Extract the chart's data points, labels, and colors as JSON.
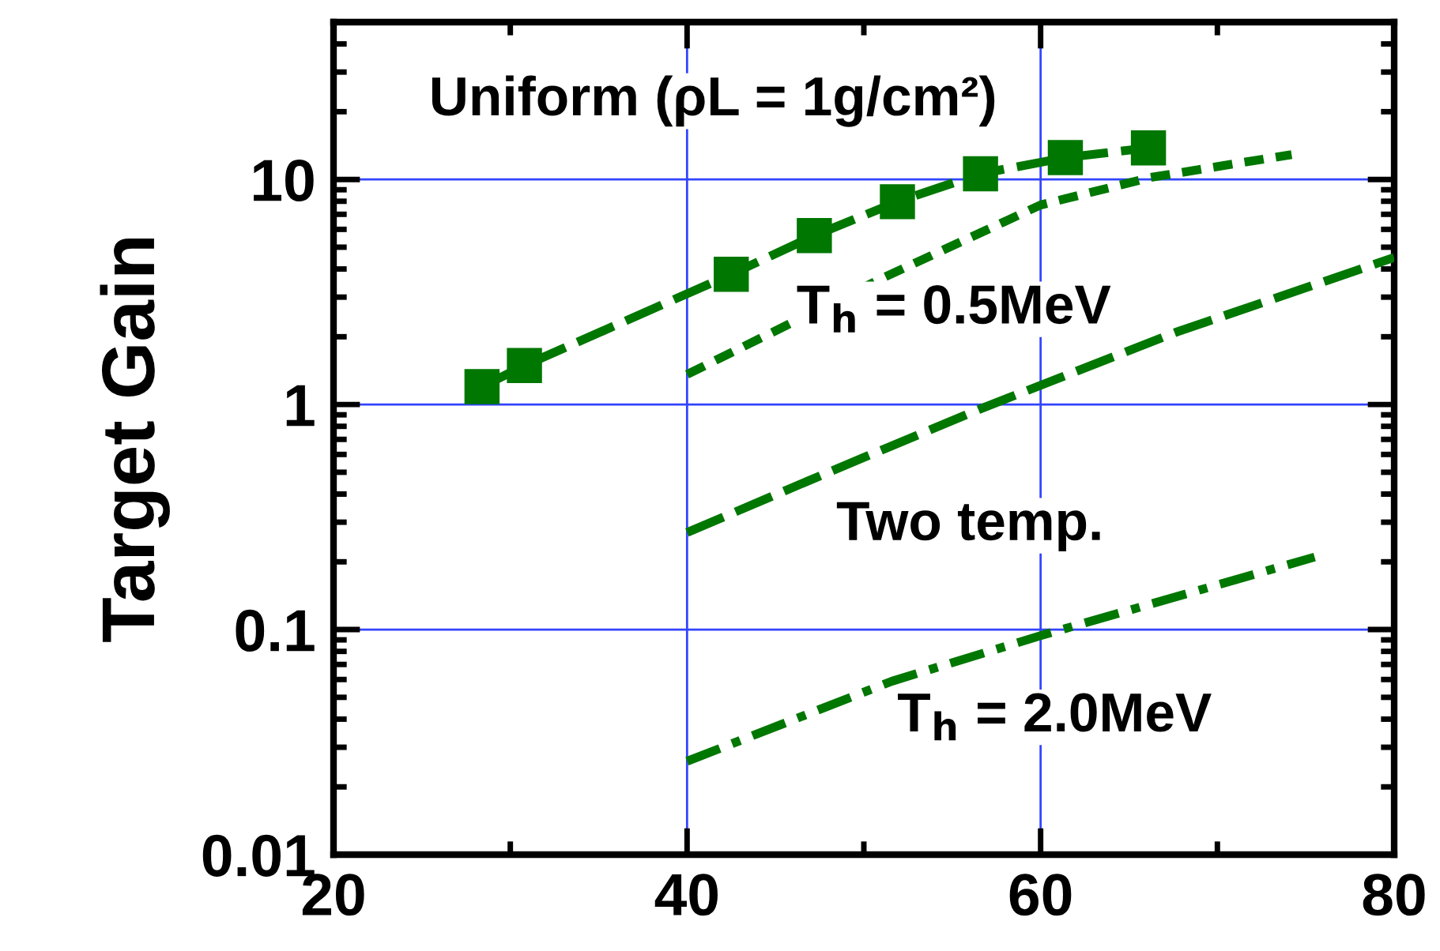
{
  "chart_data": {
    "type": "line",
    "title": "Uniform (ρL = 1g/cm²)",
    "ylabel": "Target Gain",
    "xlim": [
      20,
      80
    ],
    "xticks": [
      20,
      40,
      60,
      80
    ],
    "ylim": [
      0.01,
      50
    ],
    "yticks": [
      0.01,
      0.1,
      1,
      10
    ],
    "log": "y",
    "grid": true,
    "series": [
      {
        "color": "#007700",
        "marker": "square",
        "line_style": "dashed",
        "x": [
          28.4,
          30.8,
          42.5,
          47.2,
          51.9,
          56.6,
          61.4,
          66.1
        ],
        "values": [
          1.2,
          1.49,
          3.79,
          5.63,
          7.96,
          10.6,
          12.5,
          13.8
        ]
      },
      {
        "color": "#007700",
        "marker": "none",
        "line_style": "dotted",
        "x": [
          40,
          51,
          60,
          66.2,
          74.2
        ],
        "values": [
          1.36,
          3.63,
          7.7,
          10.2,
          12.9
        ]
      },
      {
        "color": "#007700",
        "marker": "none",
        "line_style": "dashed",
        "x": [
          40,
          48,
          56.5,
          67.7,
          80
        ],
        "values": [
          0.27,
          0.5,
          0.95,
          2.1,
          4.5
        ]
      },
      {
        "color": "#007700",
        "marker": "none",
        "line_style": "dashdot",
        "x": [
          40,
          51.6,
          60,
          75.5
        ],
        "values": [
          0.026,
          0.059,
          0.094,
          0.21
        ]
      }
    ],
    "annotations": [
      "T$_{h}$ = 0.5MeV",
      "Two temp.",
      "T$_{h}$ = 2.0MeV"
    ]
  }
}
